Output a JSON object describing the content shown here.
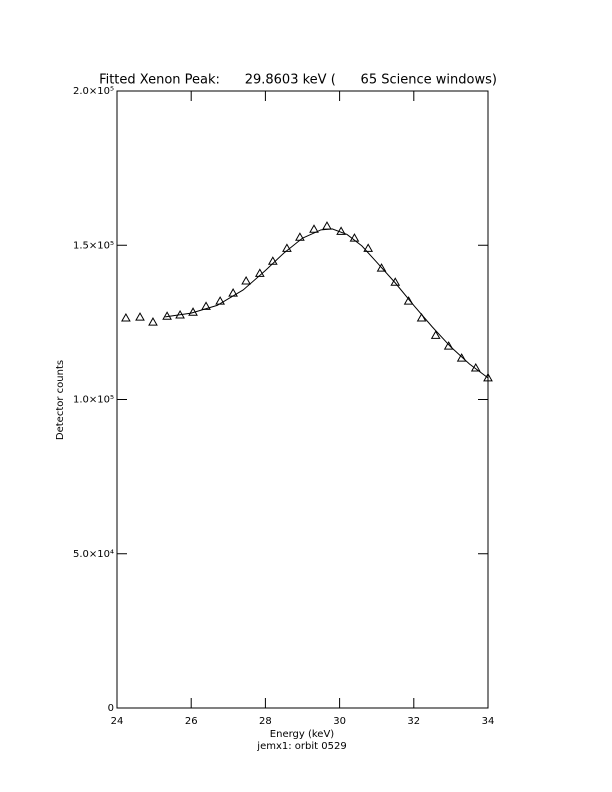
{
  "chart_data": {
    "type": "scatter",
    "title": "Fitted Xenon Peak:      29.8603 keV (      65 Science windows)",
    "x_label": "Energy (keV)",
    "y_label": "Detector counts",
    "footnote": "jemx1: orbit 0529",
    "xlim": [
      24,
      34
    ],
    "xticks": [
      24,
      26,
      28,
      30,
      32,
      34
    ],
    "ylim": [
      0,
      200000
    ],
    "yticks": [
      0,
      {
        "value": 50000,
        "label": "5.0×10⁴"
      },
      {
        "value": 100000,
        "label": "1.0×10⁵"
      },
      {
        "value": 150000,
        "label": "1.5×10⁵"
      },
      {
        "value": 200000,
        "label": "2.0×10⁵"
      }
    ],
    "series": [
      {
        "mode": "markers",
        "color": "#000000",
        "x": [
          24.24,
          24.62,
          24.97,
          25.35,
          25.7,
          26.05,
          26.4,
          26.78,
          27.13,
          27.48,
          27.85,
          28.2,
          28.58,
          28.93,
          29.31,
          29.66,
          30.04,
          30.4,
          30.77,
          31.13,
          31.5,
          31.86,
          32.21,
          32.59,
          32.94,
          33.29,
          33.67,
          34.0
        ],
        "values": [
          126400,
          126700,
          125100,
          127000,
          127400,
          128300,
          130200,
          131900,
          134500,
          138400,
          140900,
          144800,
          149000,
          152600,
          155200,
          156200,
          154500,
          152300,
          149000,
          142600,
          138000,
          131900,
          126400,
          120800,
          117300,
          113400,
          110200,
          107000
        ]
      },
      {
        "mode": "line",
        "color": "#000000",
        "x": [
          25.3,
          26,
          26.7,
          27.4,
          28,
          28.5,
          29,
          29.5,
          29.8,
          30.2,
          30.6,
          31,
          31.5,
          32,
          32.5,
          33,
          33.5,
          34
        ],
        "values": [
          126800,
          128000,
          130500,
          135500,
          141800,
          147500,
          152300,
          155000,
          155300,
          153500,
          149800,
          144500,
          137800,
          130500,
          123500,
          117000,
          111500,
          107000
        ]
      }
    ]
  }
}
